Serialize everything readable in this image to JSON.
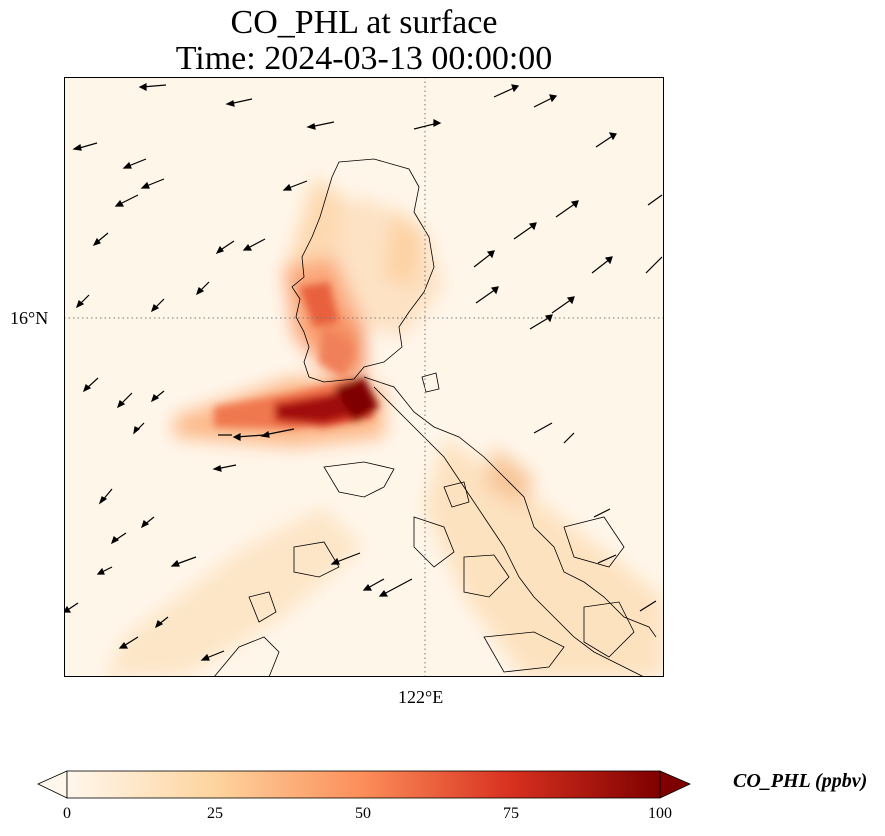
{
  "title_line1": "CO_PHL at surface",
  "title_line2": "Time: 2024-03-13 00:00:00",
  "axes": {
    "lat_label": "16°N",
    "lon_label": "122°E"
  },
  "colorbar": {
    "label": "CO_PHL (ppbv)",
    "ticks": [
      "0",
      "25",
      "50",
      "75",
      "100"
    ],
    "range": [
      0,
      100
    ],
    "colormap": "OrRd",
    "colors": [
      "#fff7ec",
      "#fdd49e",
      "#fc8d59",
      "#d7301f",
      "#7f0000"
    ]
  },
  "map": {
    "region": "Luzon, Philippines",
    "gridlines": "dotted",
    "wind_vectors": "northeasterly"
  }
}
